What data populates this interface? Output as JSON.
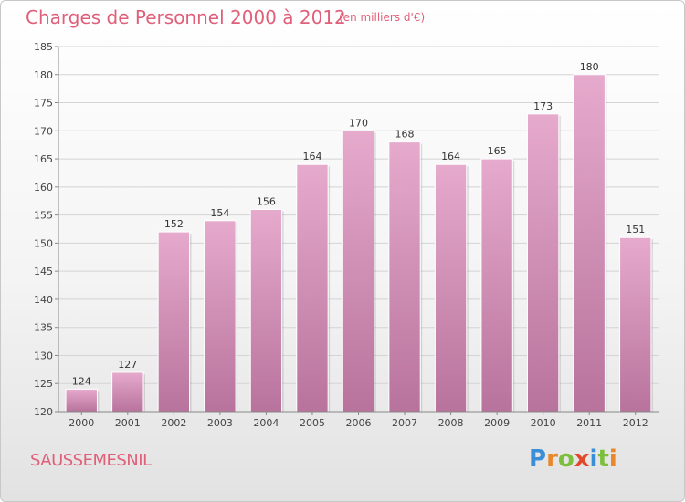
{
  "header": {
    "title": "Charges de Personnel 2000 à 2012",
    "unit_note": "(en milliers d'€)"
  },
  "footer": {
    "place": "SAUSSEMESNIL",
    "brand_letters": [
      "P",
      "r",
      "o",
      "x",
      "i",
      "t",
      "i"
    ],
    "brand_colors": [
      "#3a8fd6",
      "#e8882a",
      "#7bbf3a",
      "#e04a2a",
      "#3a8fd6",
      "#7bbf3a",
      "#e8882a"
    ]
  },
  "colors": {
    "bar_top": "#e6aacd",
    "bar_bottom": "#b8739c",
    "title": "#e0607a"
  },
  "chart_data": {
    "type": "bar",
    "categories": [
      "2000",
      "2001",
      "2002",
      "2003",
      "2004",
      "2005",
      "2006",
      "2007",
      "2008",
      "2009",
      "2010",
      "2011",
      "2012"
    ],
    "values": [
      124,
      127,
      152,
      154,
      156,
      164,
      170,
      168,
      164,
      165,
      173,
      180,
      151
    ],
    "ylim": [
      120,
      185
    ],
    "yticks": [
      120,
      125,
      130,
      135,
      140,
      145,
      150,
      155,
      160,
      165,
      170,
      175,
      180,
      185
    ],
    "grid": true
  }
}
